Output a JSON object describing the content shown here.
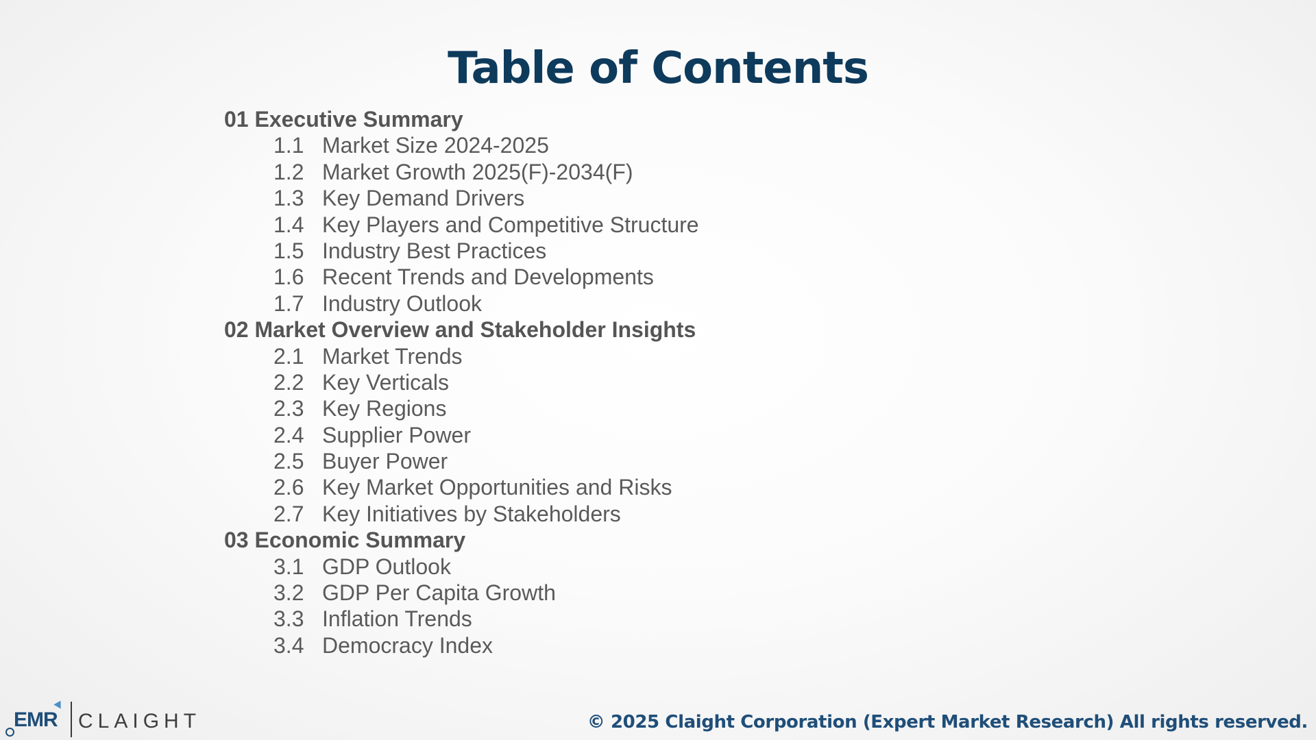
{
  "title": "Table of Contents",
  "sections": [
    {
      "heading": "01 Executive Summary",
      "items": [
        {
          "num": "1.1",
          "label": "Market Size 2024-2025"
        },
        {
          "num": "1.2",
          "label": "Market Growth 2025(F)-2034(F)"
        },
        {
          "num": "1.3",
          "label": "Key Demand Drivers"
        },
        {
          "num": "1.4",
          "label": "Key Players and Competitive Structure"
        },
        {
          "num": "1.5",
          "label": "Industry Best Practices"
        },
        {
          "num": "1.6",
          "label": "Recent Trends and Developments"
        },
        {
          "num": "1.7",
          "label": "Industry Outlook"
        }
      ]
    },
    {
      "heading": "02 Market Overview and Stakeholder Insights",
      "items": [
        {
          "num": "2.1",
          "label": "Market Trends"
        },
        {
          "num": "2.2",
          "label": "Key Verticals"
        },
        {
          "num": "2.3",
          "label": "Key Regions"
        },
        {
          "num": "2.4",
          "label": "Supplier Power"
        },
        {
          "num": "2.5",
          "label": "Buyer Power"
        },
        {
          "num": "2.6",
          "label": "Key Market Opportunities and Risks"
        },
        {
          "num": "2.7",
          "label": "Key Initiatives by Stakeholders"
        }
      ]
    },
    {
      "heading": "03 Economic Summary",
      "items": [
        {
          "num": "3.1",
          "label": "GDP Outlook"
        },
        {
          "num": "3.2",
          "label": "GDP Per Capita Growth"
        },
        {
          "num": "3.3",
          "label": "Inflation Trends"
        },
        {
          "num": "3.4",
          "label": "Democracy Index"
        }
      ]
    }
  ],
  "logo": {
    "left_text": "EMR",
    "right_text": "CLAIGHT"
  },
  "footer": "© 2025 Claight Corporation (Expert Market Research) All rights reserved."
}
